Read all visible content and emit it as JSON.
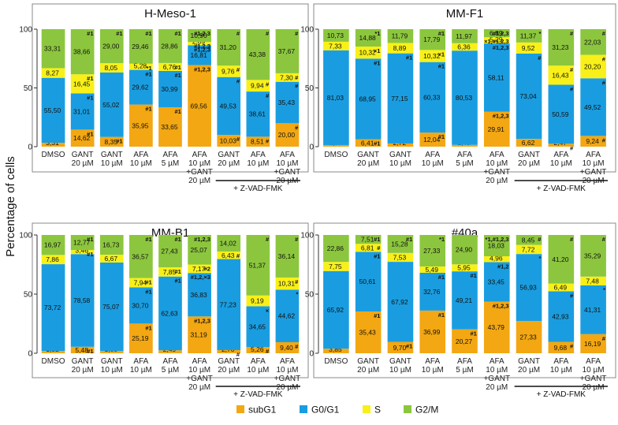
{
  "figure": {
    "ylabel": "Percentage of cells",
    "yticks": [
      "0",
      "50",
      "100"
    ],
    "treatment_label": "+ Z-VAD-FMK",
    "legend": [
      {
        "name": "subG1",
        "color": "#f3a712"
      },
      {
        "name": "G0/G1",
        "color": "#1a9de0"
      },
      {
        "name": "S",
        "color": "#f8f018"
      },
      {
        "name": "G2/M",
        "color": "#8cc63e"
      }
    ]
  },
  "chart_data": [
    {
      "type": "bar",
      "stacked": true,
      "title": "H-Meso-1",
      "categories": [
        "DMSO",
        "GANT|20 µM",
        "GANT|10 µM",
        "AFA|10 µM",
        "AFA|5 µM",
        "AFA|10 µM|+GANT|20 µM",
        "GANT|20 µM",
        "AFA|10 µM",
        "AFA|10 µM|+GANT|20 µM"
      ],
      "ylim": [
        0,
        100
      ],
      "series": [
        {
          "name": "subG1",
          "values": [
            3.31,
            14.62,
            8.35,
            35.95,
            33.65,
            69.56,
            10.03,
            8.51,
            20.0
          ],
          "labels": [
            "3,31",
            "14,62",
            "8,35",
            "35,95",
            "33,65",
            "69,56",
            "10,03",
            "8,51",
            "20,00"
          ],
          "marks": [
            "",
            "#1",
            "#1",
            "#1",
            "#1",
            "#1,2,3",
            "#",
            "#",
            "#"
          ]
        },
        {
          "name": "G0/G1",
          "values": [
            55.5,
            31.01,
            55.02,
            29.62,
            30.99,
            16.81,
            49.53,
            38.61,
            35.43
          ],
          "labels": [
            "55,50",
            "31,01",
            "55,02",
            "29,62",
            "30,99",
            "16,81",
            "49,53",
            "38,61",
            "35,43"
          ],
          "marks": [
            "",
            "#1",
            "",
            "#1",
            "#1",
            "#1,2,3",
            "#",
            "#",
            "#"
          ]
        },
        {
          "name": "S",
          "values": [
            8.27,
            16.45,
            8.05,
            5.28,
            6.76,
            2.89,
            9.76,
            9.94,
            7.3
          ],
          "labels": [
            "8,27",
            "16,45",
            "8,05",
            "5,28",
            "6,76",
            "2,89",
            "9,76",
            "9,94",
            "7,30"
          ],
          "marks": [
            "",
            "#1",
            "",
            "*1",
            "#1",
            "#1,2,3",
            "#",
            "#",
            "#"
          ]
        },
        {
          "name": "G2/M",
          "values": [
            33.31,
            38.66,
            29.0,
            29.46,
            28.86,
            10.9,
            31.2,
            43.38,
            37.67
          ],
          "labels": [
            "33,31",
            "38,66",
            "29,00",
            "29,46",
            "28,86",
            "10,90",
            "31,20",
            "43,38",
            "37,67"
          ],
          "marks": [
            "",
            "#1",
            "#1",
            "#1",
            "#1",
            "#1,2,3",
            "#",
            "#",
            "#"
          ]
        }
      ]
    },
    {
      "type": "bar",
      "stacked": true,
      "title": "MM-F1",
      "categories": [
        "DMSO",
        "GANT|20 µM",
        "GANT|10 µM",
        "AFA|10 µM",
        "AFA|5 µM",
        "AFA|10 µM|+GANT|20 µM",
        "GANT|20 µM",
        "AFA|10 µM",
        "AFA|10 µM|+GANT|20 µM"
      ],
      "ylim": [
        0,
        100
      ],
      "series": [
        {
          "name": "subG1",
          "values": [
            1.37,
            6.41,
            2.72,
            12.04,
            1.49,
            29.91,
            6.62,
            2.47,
            9.24
          ],
          "labels": [
            "1,37",
            "6,41",
            "2,72",
            "12,04",
            "1,49",
            "29,91",
            "6,62",
            "2,47",
            "9,24"
          ],
          "marks": [
            "",
            "#1",
            "",
            "#1",
            "",
            "#1,2,3",
            "",
            "#",
            "#"
          ]
        },
        {
          "name": "G0/G1",
          "values": [
            81.03,
            68.95,
            77.15,
            60.33,
            80.53,
            58.11,
            73.04,
            50.59,
            49.52
          ],
          "labels": [
            "81,03",
            "68,95",
            "77,15",
            "60,33",
            "80,53",
            "58,11",
            "73,04",
            "50,59",
            "49,52"
          ],
          "marks": [
            "",
            "#1",
            "#1",
            "#1",
            "",
            "#1,2,3",
            "#",
            "#",
            "#"
          ]
        },
        {
          "name": "S",
          "values": [
            7.33,
            10.32,
            8.89,
            10.32,
            6.36,
            5.29,
            9.52,
            16.43,
            20.2
          ],
          "labels": [
            "7,33",
            "10,32",
            "8,89",
            "10,32",
            "6,36",
            "5,29",
            "9,52",
            "16,43",
            "20,20"
          ],
          "marks": [
            "",
            "×1",
            "",
            "×1",
            "",
            "×1,#1,2,3",
            "",
            "#",
            "#"
          ]
        },
        {
          "name": "G2/M",
          "values": [
            10.73,
            14.88,
            11.79,
            17.79,
            11.97,
            6.89,
            11.37,
            31.23,
            22.03
          ],
          "labels": [
            "10,73",
            "14,88",
            "11,79",
            "17,79",
            "11,97",
            "6,89",
            "11,37",
            "31,23",
            "22,03"
          ],
          "marks": [
            "",
            "*1",
            "",
            "#1",
            "",
            "#1,2,3",
            "*",
            "#",
            "#"
          ]
        }
      ]
    },
    {
      "type": "bar",
      "stacked": true,
      "title": "MM-B1",
      "categories": [
        "DMSO",
        "GANT|20 µM",
        "GANT|10 µM",
        "AFA|10 µM",
        "AFA|5 µM",
        "AFA|10 µM|+GANT|20 µM",
        "GANT|20 µM",
        "AFA|10 µM",
        "AFA|10 µM|+GANT|20 µM"
      ],
      "ylim": [
        0,
        100
      ],
      "series": [
        {
          "name": "subG1",
          "values": [
            1.92,
            5.48,
            1.85,
            25.19,
            2.49,
            31.19,
            2.7,
            5.26,
            9.4
          ],
          "labels": [
            "1,92",
            "5,48",
            "1,85",
            "25,19",
            "2,49",
            "31,19",
            "2,70",
            "5,26",
            "9,40"
          ],
          "marks": [
            "",
            "#1",
            "",
            "#1",
            "",
            "#1,2,3",
            "#",
            "#",
            "#"
          ]
        },
        {
          "name": "G0/G1",
          "values": [
            73.72,
            78.58,
            75.07,
            30.7,
            62.63,
            36.83,
            77.23,
            34.65,
            44.62
          ],
          "labels": [
            "73,72",
            "78,58",
            "75,07",
            "30,70",
            "62,63",
            "36,83",
            "77,23",
            "34,65",
            "44,62"
          ],
          "marks": [
            "",
            "",
            "",
            "#1",
            "#1",
            "#1,2,×3",
            "",
            "×",
            "*"
          ]
        },
        {
          "name": "S",
          "values": [
            7.86,
            3.46,
            6.67,
            7.94,
            7.85,
            7.17,
            6.43,
            9.19,
            10.31
          ],
          "labels": [
            "7,86",
            "3,46",
            "6,67",
            "7,94",
            "7,85",
            "7,17",
            "6,43",
            "9,19",
            "10,31"
          ],
          "marks": [
            "",
            "#1",
            "",
            "#1",
            "#1",
            "#2",
            "#",
            "",
            "#"
          ]
        },
        {
          "name": "G2/M",
          "values": [
            16.97,
            12.77,
            16.73,
            36.57,
            27.43,
            25.07,
            14.02,
            51.37,
            36.14
          ],
          "labels": [
            "16,97",
            "12,77",
            "16,73",
            "36,57",
            "27,43",
            "25,07",
            "14,02",
            "51,37",
            "36,14"
          ],
          "marks": [
            "",
            "#1",
            "",
            "#1",
            "#1",
            "#1,2,3",
            "",
            "#",
            "#"
          ]
        }
      ]
    },
    {
      "type": "bar",
      "stacked": true,
      "title": "#40a",
      "categories": [
        "DMSO",
        "GANT|20 µM",
        "GANT|10 µM",
        "AFA|10 µM",
        "AFA|5 µM",
        "AFA|10 µM|+GANT|20 µM",
        "GANT|20 µM",
        "AFA|10 µM",
        "AFA|10 µM|+GANT|20 µM"
      ],
      "ylim": [
        0,
        100
      ],
      "series": [
        {
          "name": "subG1",
          "values": [
            3.85,
            35.43,
            9.7,
            36.99,
            20.27,
            43.79,
            27.33,
            9.68,
            16.19
          ],
          "labels": [
            "3,85",
            "35,43",
            "9,70",
            "36,99",
            "20,27",
            "43,79",
            "27,33",
            "9,68",
            "16,19"
          ],
          "marks": [
            "",
            "#1",
            "#1",
            "#1",
            "#1",
            "#1,2,3",
            "",
            "#",
            "#"
          ]
        },
        {
          "name": "G0/G1",
          "values": [
            65.92,
            50.61,
            67.92,
            32.76,
            49.21,
            33.45,
            56.93,
            42.93,
            41.31
          ],
          "labels": [
            "65,92",
            "50,61",
            "67,92",
            "32,76",
            "49,21",
            "33,45",
            "56,93",
            "42,93",
            "41,31"
          ],
          "marks": [
            "",
            "#1",
            "",
            "#1",
            "#1",
            "#1,2",
            "*",
            "#",
            "*"
          ]
        },
        {
          "name": "S",
          "values": [
            7.75,
            6.81,
            7.53,
            5.49,
            5.95,
            4.96,
            7.72,
            6.49,
            7.48
          ],
          "labels": [
            "7,75",
            "6,81",
            "7,53",
            "5,49",
            "5,95",
            "4,96",
            "7,72",
            "6,49",
            "7,48"
          ],
          "marks": [
            "",
            "#",
            "",
            "",
            "",
            "",
            "",
            "",
            ""
          ]
        },
        {
          "name": "G2/M",
          "values": [
            22.86,
            7.51,
            15.28,
            27.33,
            24.9,
            18.03,
            8.45,
            41.2,
            35.29
          ],
          "labels": [
            "22,86",
            "7,51",
            "15,28",
            "27,33",
            "24,90",
            "18,03",
            "8,45",
            "41,20",
            "35,29"
          ],
          "marks": [
            "",
            "#1",
            "#1",
            "*1",
            "",
            "*1,#1,2,3",
            "#",
            "#",
            "#"
          ]
        }
      ]
    }
  ]
}
